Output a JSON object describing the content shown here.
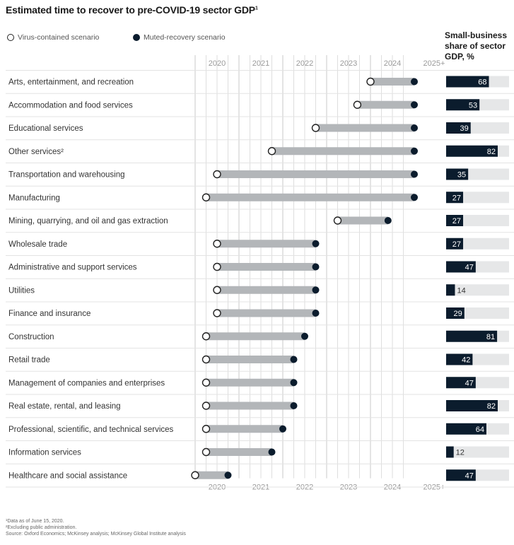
{
  "chart_data": {
    "type": "dumbbell",
    "title": "Estimated time to recover to pre-COVID-19 sector GDP",
    "title_marker": "1",
    "x_categories": [
      "2020",
      "2021",
      "2022",
      "2023",
      "2024",
      "2025+"
    ],
    "series": [
      {
        "name": "Virus-contained scenario",
        "marker": "open-circle"
      },
      {
        "name": "Muted-recovery scenario",
        "marker": "filled-circle"
      }
    ],
    "right_panel": {
      "title_lines": [
        "Small-business",
        "share of sector",
        "GDP, %"
      ],
      "max": 100
    },
    "rows": [
      {
        "label": "Arts, entertainment, and recreation",
        "virus_contained": 2024.0,
        "muted_recovery": 2025.0,
        "small_business_share": 68
      },
      {
        "label": "Accommodation and food services",
        "virus_contained": 2023.7,
        "muted_recovery": 2025.0,
        "small_business_share": 53
      },
      {
        "label": "Educational services",
        "virus_contained": 2022.75,
        "muted_recovery": 2025.0,
        "small_business_share": 39
      },
      {
        "label": "Other services²",
        "virus_contained": 2021.75,
        "muted_recovery": 2025.0,
        "small_business_share": 82
      },
      {
        "label": "Transportation and warehousing",
        "virus_contained": 2020.5,
        "muted_recovery": 2025.0,
        "small_business_share": 35
      },
      {
        "label": "Manufacturing",
        "virus_contained": 2020.25,
        "muted_recovery": 2025.0,
        "small_business_share": 27
      },
      {
        "label": "Mining, quarrying, and oil and gas extraction",
        "virus_contained": 2023.25,
        "muted_recovery": 2024.4,
        "small_business_share": 27
      },
      {
        "label": "Wholesale trade",
        "virus_contained": 2020.5,
        "muted_recovery": 2022.75,
        "small_business_share": 27
      },
      {
        "label": "Administrative and support services",
        "virus_contained": 2020.5,
        "muted_recovery": 2022.75,
        "small_business_share": 47
      },
      {
        "label": "Utilities",
        "virus_contained": 2020.5,
        "muted_recovery": 2022.75,
        "small_business_share": 14
      },
      {
        "label": "Finance and insurance",
        "virus_contained": 2020.5,
        "muted_recovery": 2022.75,
        "small_business_share": 29
      },
      {
        "label": "Construction",
        "virus_contained": 2020.25,
        "muted_recovery": 2022.5,
        "small_business_share": 81
      },
      {
        "label": "Retail trade",
        "virus_contained": 2020.25,
        "muted_recovery": 2022.25,
        "small_business_share": 42
      },
      {
        "label": "Management of companies and enterprises",
        "virus_contained": 2020.25,
        "muted_recovery": 2022.25,
        "small_business_share": 47
      },
      {
        "label": "Real estate, rental, and leasing",
        "virus_contained": 2020.25,
        "muted_recovery": 2022.25,
        "small_business_share": 82
      },
      {
        "label": "Professional, scientific, and technical services",
        "virus_contained": 2020.25,
        "muted_recovery": 2022.0,
        "small_business_share": 64
      },
      {
        "label": "Information services",
        "virus_contained": 2020.25,
        "muted_recovery": 2021.75,
        "small_business_share": 12
      },
      {
        "label": "Healthcare and social assistance",
        "virus_contained": 2020.0,
        "muted_recovery": 2020.75,
        "small_business_share": 47
      }
    ],
    "colors": {
      "range_bar": "#b3b6b9",
      "filled_marker": "#0b1c2d",
      "share_bar": "#0b1c2d",
      "share_track": "#e6e7e8",
      "grid": "#c8c8c8",
      "row_divider": "#e3e3e3"
    }
  },
  "notes": {
    "n1": "¹Data as of June 15, 2020.",
    "n2": "²Excluding public administration.",
    "n3": "Source: Oxford Economics; McKinsey analysis; McKinsey Global Institute analysis"
  }
}
